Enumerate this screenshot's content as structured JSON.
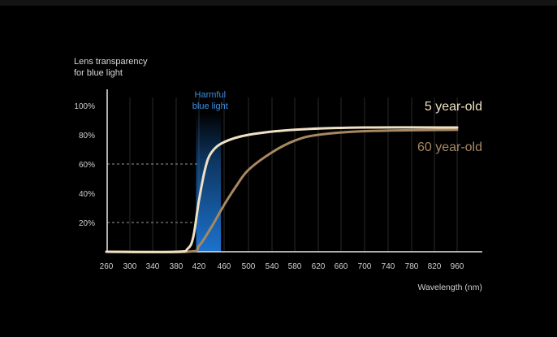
{
  "chart_data": {
    "type": "line",
    "ylabel_lines": [
      "Lens transparency",
      "for blue light"
    ],
    "xlabel": "Wavelength (nm)",
    "x_ticks": [
      260,
      300,
      340,
      380,
      420,
      460,
      500,
      540,
      580,
      620,
      660,
      700,
      740,
      780,
      820,
      960
    ],
    "y_ticks": [
      "20%",
      "40%",
      "60%",
      "80%",
      "100%"
    ],
    "ylim": [
      0,
      100
    ],
    "grid": "vertical",
    "highlight_band": {
      "label_lines": [
        "Harmful",
        "blue light"
      ],
      "range_nm": [
        415,
        455
      ],
      "color": "#1e78d8"
    },
    "series": [
      {
        "name": "5 year-old",
        "color": "#efe1c4",
        "points": [
          [
            260,
            0
          ],
          [
            380,
            0
          ],
          [
            400,
            2
          ],
          [
            410,
            10
          ],
          [
            420,
            35
          ],
          [
            430,
            57
          ],
          [
            440,
            68
          ],
          [
            460,
            75
          ],
          [
            500,
            80
          ],
          [
            580,
            83.5
          ],
          [
            700,
            85
          ],
          [
            960,
            85
          ]
        ]
      },
      {
        "name": "60 year-old",
        "color": "#a88862",
        "points": [
          [
            260,
            0
          ],
          [
            400,
            0
          ],
          [
            420,
            4
          ],
          [
            440,
            17
          ],
          [
            460,
            32
          ],
          [
            480,
            45
          ],
          [
            500,
            56
          ],
          [
            540,
            68
          ],
          [
            580,
            76
          ],
          [
            620,
            80
          ],
          [
            700,
            82.5
          ],
          [
            960,
            83.5
          ]
        ]
      }
    ],
    "reference_lines": [
      {
        "y": 60,
        "x": 420
      },
      {
        "y": 20,
        "x": 420
      }
    ]
  }
}
